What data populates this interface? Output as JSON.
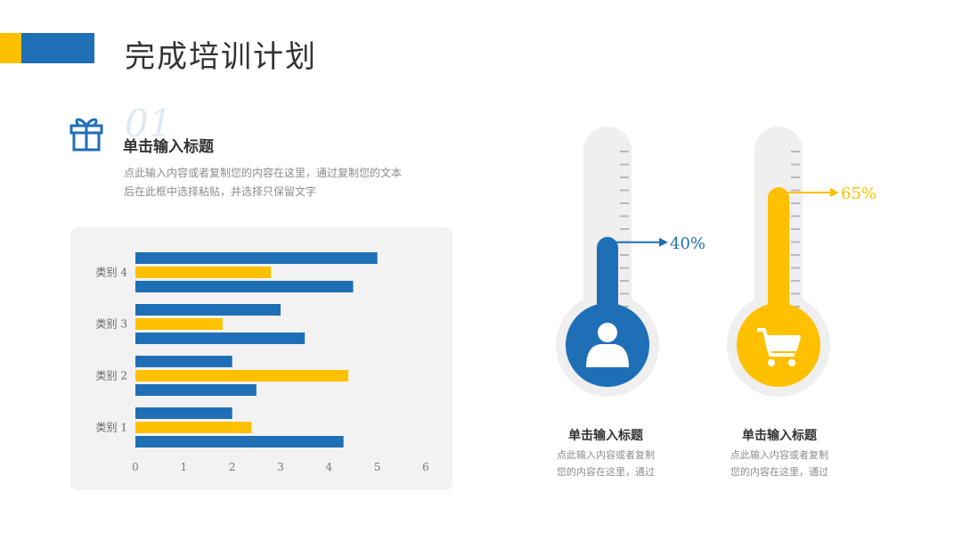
{
  "header": {
    "title": "完成培训计划"
  },
  "section": {
    "number": "01",
    "heading": "单击输入标题",
    "desc": "点此输入内容或者复制您的内容在这里，通过复制您的文本后在此框中选择粘贴，并选择只保留文字"
  },
  "chart_data": {
    "type": "bar",
    "orientation": "horizontal",
    "categories": [
      "类别 1",
      "类别 2",
      "类别 3",
      "类别 4"
    ],
    "series": [
      {
        "values": [
          4.3,
          2.5,
          3.5,
          4.5
        ],
        "color": "#1F6FB7"
      },
      {
        "values": [
          2.4,
          4.4,
          1.8,
          2.8
        ],
        "color": "#FFC000"
      },
      {
        "values": [
          2.0,
          2.0,
          3.0,
          5.0
        ],
        "color": "#1F6FB7"
      }
    ],
    "xlim": [
      0,
      6
    ],
    "xticks": [
      "0",
      "1",
      "2",
      "3",
      "4",
      "5",
      "6"
    ]
  },
  "thermometers": [
    {
      "percent": 0.4,
      "label": "40%",
      "color": "#1F6FB7",
      "icon": "person-icon",
      "title": "单击输入标题",
      "desc1": "点此输入内容或者复制",
      "desc2": "您的内容在这里，通过"
    },
    {
      "percent": 0.65,
      "label": "65%",
      "color": "#FFC000",
      "icon": "cart-icon",
      "title": "单击输入标题",
      "desc1": "点此输入内容或者复制",
      "desc2": "您的内容在这里，通过"
    }
  ]
}
